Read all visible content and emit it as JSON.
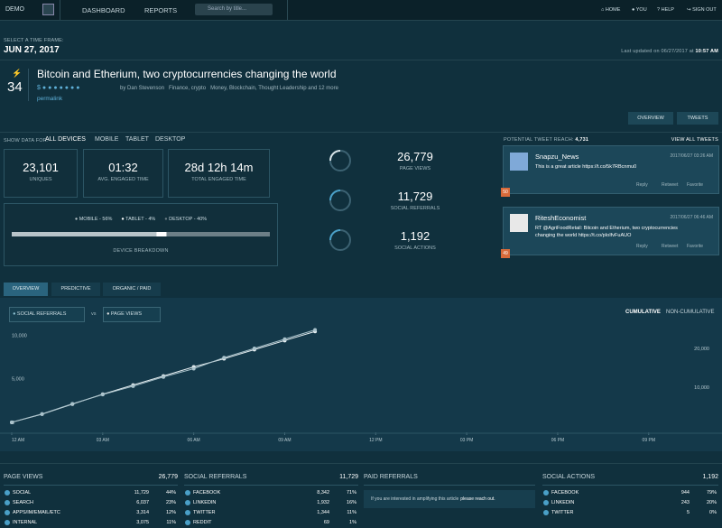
{
  "topbar": {
    "brand": "DEMO",
    "nav": [
      "DASHBOARD",
      "REPORTS"
    ],
    "search_placeholder": "Search by title...",
    "links": [
      "HOME",
      "YOU",
      "HELP",
      "SIGN OUT"
    ]
  },
  "timeframe": {
    "label": "SELECT A TIME FRAME:",
    "date": "JUN 27, 2017",
    "updated": "Last updated on 06/27/2017 at",
    "updated_time": "10:57 AM"
  },
  "article": {
    "score": "34",
    "title": "Bitcoin and Etherium, two cryptocurrencies changing the world",
    "author": "by Dan Stevenson",
    "sections": "Finance, crypto",
    "tags": "Money, Blockchain, Thought Leadership and 12 more",
    "permalink": "permalink"
  },
  "view_buttons": [
    "OVERVIEW",
    "TWEETS"
  ],
  "devices": {
    "label": "SHOW DATA FOR:",
    "options": [
      "ALL DEVICES",
      "MOBILE",
      "TABLET",
      "DESKTOP"
    ]
  },
  "stats": [
    {
      "value": "23,101",
      "label": "UNIQUES"
    },
    {
      "value": "01:32",
      "label": "AVG. ENGAGED TIME"
    },
    {
      "value": "28d 12h 14m",
      "label": "TOTAL ENGAGED TIME"
    }
  ],
  "breakdown": {
    "title": "DEVICE BREAKDOWN",
    "items": [
      {
        "label": "MOBILE - 56%",
        "value": 56,
        "color": "#b8c4c9"
      },
      {
        "label": "TABLET - 4%",
        "value": 4,
        "color": "#ffffff"
      },
      {
        "label": "DESKTOP - 40%",
        "value": 40,
        "color": "#6d7f87"
      }
    ]
  },
  "totals": [
    {
      "value": "26,779",
      "label": "PAGE VIEWS"
    },
    {
      "value": "11,729",
      "label": "SOCIAL REFERRALS"
    },
    {
      "value": "1,192",
      "label": "SOCIAL ACTIONS"
    }
  ],
  "tweets": {
    "reach_label": "POTENTIAL TWEET REACH:",
    "reach": "4,731",
    "view_all": "VIEW ALL TWEETS",
    "actions": [
      "Reply",
      "Retweet",
      "Favorite"
    ],
    "items": [
      {
        "user": "Snapzu_News",
        "time": "2017/06/27 03:26 AM",
        "text": "This is a great article https://t.co/5k7RBcnmu0",
        "badge": "50"
      },
      {
        "user": "RiteshEconomist",
        "time": "2017/06/27 06:46 AM",
        "text": "RT @AgriFoodRetail: Bitcoin and Etherium, two cryptocurrencies changing the world https://t.co/pIoIfvFuAUO",
        "badge": "49"
      }
    ]
  },
  "tabs": [
    "OVERVIEW",
    "PREDICTIVE",
    "ORGANIC / PAID"
  ],
  "chart": {
    "type": "line",
    "compare": "vs",
    "modes": [
      "CUMULATIVE",
      "NON-CUMULATIVE"
    ],
    "x": [
      0,
      1,
      2,
      3,
      4,
      5,
      6,
      7,
      8,
      9,
      10
    ],
    "xlim": [
      0,
      23
    ],
    "xticks": [
      {
        "value": 0,
        "label": "12 AM"
      },
      {
        "value": 3,
        "label": "03 AM"
      },
      {
        "value": 6,
        "label": "06 AM"
      },
      {
        "value": 9,
        "label": "09 AM"
      },
      {
        "value": 12,
        "label": "12 PM"
      },
      {
        "value": 15,
        "label": "03 PM"
      },
      {
        "value": 18,
        "label": "06 PM"
      },
      {
        "value": 21,
        "label": "09 PM"
      }
    ],
    "ylim": [
      0,
      12000
    ],
    "yticks": [
      0,
      {
        "value": 5000,
        "label": "5,000"
      },
      {
        "value": 10000,
        "label": "10,000"
      }
    ],
    "y2lim": [
      0,
      27000
    ],
    "y2ticks": [
      {
        "value": 10000,
        "label": "10,000"
      },
      {
        "value": 20000,
        "label": "20,000"
      }
    ],
    "series": [
      {
        "name": "SOCIAL REFERRALS",
        "color": "#e6eef1",
        "dot": "#8fc3d4",
        "values": [
          833,
          1771,
          2917,
          4063,
          5104,
          6146,
          7188,
          8125,
          9167,
          10208,
          11250
        ]
      },
      {
        "name": "PAGE VIEWS",
        "color": "#a9c2cb",
        "dot": "#e0e0e0",
        "axis": "y2",
        "values": [
          1905,
          4048,
          6667,
          9048,
          11190,
          13571,
          15714,
          18571,
          20952,
          23333,
          25714
        ]
      }
    ]
  },
  "tables": [
    {
      "title": "PAGE VIEWS",
      "total": "26,779",
      "rows": [
        [
          "SOCIAL",
          "11,729",
          "44%"
        ],
        [
          "SEARCH",
          "6,037",
          "23%"
        ],
        [
          "APPS/IM/EMAIL/ETC",
          "3,314",
          "12%"
        ],
        [
          "INTERNAL",
          "3,075",
          "11%"
        ]
      ]
    },
    {
      "title": "SOCIAL REFERRALS",
      "total": "11,729",
      "rows": [
        [
          "FACEBOOK",
          "8,342",
          "71%"
        ],
        [
          "LINKEDIN",
          "1,932",
          "16%"
        ],
        [
          "TWITTER",
          "1,344",
          "11%"
        ],
        [
          "REDDIT",
          "69",
          "1%"
        ]
      ]
    },
    {
      "title": "PAID REFERRALS",
      "note": "If you are interested in amplifying this article",
      "link": "please reach out."
    },
    {
      "title": "SOCIAL ACTIONS",
      "total": "1,192",
      "rows": [
        [
          "FACEBOOK",
          "944",
          "79%"
        ],
        [
          "LINKEDIN",
          "243",
          "20%"
        ],
        [
          "TWITTER",
          "5",
          "0%"
        ]
      ]
    }
  ]
}
